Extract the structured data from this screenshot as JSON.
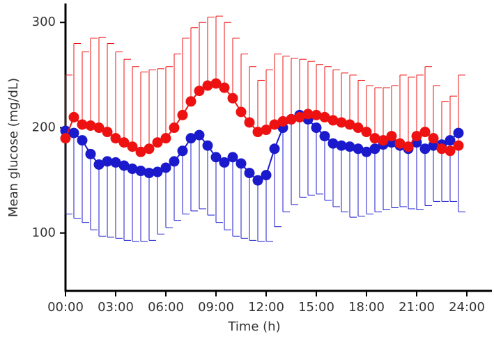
{
  "chart_data": {
    "type": "line",
    "x_label": "Time (h)",
    "y_label": "Mean glucose (mg/dL)",
    "x": [
      0,
      0.5,
      1,
      1.5,
      2,
      2.5,
      3,
      3.5,
      4,
      4.5,
      5,
      5.5,
      6,
      6.5,
      7,
      7.5,
      8,
      8.5,
      9,
      9.5,
      10,
      10.5,
      11,
      11.5,
      12,
      12.5,
      13,
      13.5,
      14,
      14.5,
      15,
      15.5,
      16,
      16.5,
      17,
      17.5,
      18,
      18.5,
      19,
      19.5,
      20,
      20.5,
      21,
      21.5,
      22,
      22.5,
      23,
      23.5
    ],
    "series": [
      {
        "color": "#1a1acc",
        "error_direction": "down",
        "values": [
          197,
          195,
          188,
          175,
          165,
          168,
          167,
          164,
          161,
          159,
          157,
          158,
          162,
          168,
          178,
          190,
          193,
          183,
          172,
          167,
          172,
          166,
          157,
          150,
          155,
          180,
          200,
          208,
          212,
          208,
          200,
          192,
          185,
          183,
          182,
          180,
          177,
          180,
          184,
          186,
          183,
          180,
          186,
          180,
          183,
          184,
          188,
          195
        ],
        "errors": [
          79,
          81,
          78,
          72,
          68,
          72,
          72,
          71,
          69,
          67,
          64,
          59,
          57,
          56,
          60,
          69,
          70,
          66,
          62,
          64,
          75,
          71,
          64,
          58,
          63,
          74,
          80,
          81,
          78,
          72,
          63,
          61,
          60,
          63,
          67,
          64,
          59,
          60,
          62,
          62,
          58,
          57,
          64,
          54,
          53,
          54,
          58,
          75
        ]
      },
      {
        "color": "#ee1111",
        "error_direction": "up",
        "values": [
          190,
          210,
          203,
          202,
          200,
          196,
          190,
          186,
          182,
          177,
          180,
          186,
          190,
          200,
          212,
          225,
          235,
          240,
          242,
          238,
          228,
          215,
          205,
          196,
          198,
          203,
          206,
          208,
          210,
          213,
          212,
          210,
          207,
          205,
          203,
          200,
          196,
          190,
          188,
          192,
          185,
          182,
          192,
          196,
          190,
          180,
          178,
          183
        ],
        "errors": [
          60,
          70,
          69,
          83,
          86,
          84,
          82,
          79,
          76,
          76,
          75,
          70,
          68,
          70,
          73,
          70,
          65,
          65,
          64,
          62,
          57,
          55,
          53,
          49,
          57,
          67,
          62,
          58,
          55,
          50,
          48,
          48,
          48,
          47,
          47,
          45,
          44,
          48,
          50,
          48,
          65,
          66,
          58,
          62,
          50,
          45,
          52,
          67
        ]
      }
    ],
    "xlim": [
      0,
      25.5
    ],
    "xticks": [
      {
        "value": 0,
        "label": "00:00"
      },
      {
        "value": 3,
        "label": "03:00"
      },
      {
        "value": 6,
        "label": "06:00"
      },
      {
        "value": 9,
        "label": "09:00"
      },
      {
        "value": 12,
        "label": "12:00"
      },
      {
        "value": 15,
        "label": "15:00"
      },
      {
        "value": 18,
        "label": "18:00"
      },
      {
        "value": 21,
        "label": "21:00"
      },
      {
        "value": 24,
        "label": "24:00"
      }
    ],
    "ylim": [
      45,
      318
    ],
    "yticks": [
      100,
      200,
      300
    ]
  }
}
